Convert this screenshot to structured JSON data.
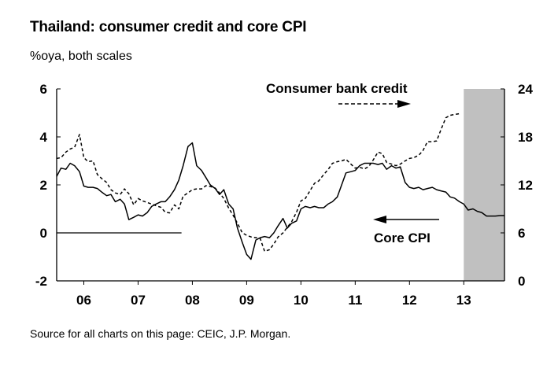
{
  "page": {
    "title": "Thailand: consumer credit and core CPI",
    "subtitle": "%oya, both scales",
    "source": "Source for all charts on this page: CEIC, J.P. Morgan."
  },
  "chart_data": {
    "type": "line",
    "title": "Thailand: consumer credit and core CPI",
    "subtitle": "%oya, both scales",
    "x_range": [
      2005.5,
      2013.75
    ],
    "x_tick_labels": [
      "06",
      "07",
      "08",
      "09",
      "10",
      "11",
      "12",
      "13"
    ],
    "y_left": {
      "range": [
        -2,
        6
      ],
      "ticks": [
        -2,
        0,
        2,
        4,
        6
      ]
    },
    "y_right": {
      "range": [
        0,
        24
      ],
      "ticks": [
        0,
        6,
        12,
        18,
        24
      ]
    },
    "shaded_region": {
      "x_start": 2013.0,
      "x_end": 2013.75,
      "color": "#c0c0c0"
    },
    "grid": false,
    "zero_line": {
      "y": 0,
      "x_start": 2005.5,
      "x_end": 2007.8
    },
    "annotations": {
      "credit_label": "Consumer bank credit",
      "cpi_label": "Core CPI",
      "credit_arrow": "right",
      "cpi_arrow": "left"
    },
    "series": [
      {
        "name": "Core CPI",
        "axis": "left",
        "style": "solid",
        "points": [
          [
            2005.5,
            2.35
          ],
          [
            2005.58,
            2.7
          ],
          [
            2005.67,
            2.65
          ],
          [
            2005.75,
            2.9
          ],
          [
            2005.83,
            2.8
          ],
          [
            2005.92,
            2.55
          ],
          [
            2006.0,
            1.95
          ],
          [
            2006.08,
            1.9
          ],
          [
            2006.17,
            1.9
          ],
          [
            2006.25,
            1.85
          ],
          [
            2006.33,
            1.7
          ],
          [
            2006.42,
            1.55
          ],
          [
            2006.5,
            1.6
          ],
          [
            2006.58,
            1.3
          ],
          [
            2006.67,
            1.4
          ],
          [
            2006.75,
            1.2
          ],
          [
            2006.83,
            0.55
          ],
          [
            2006.92,
            0.65
          ],
          [
            2007.0,
            0.75
          ],
          [
            2007.08,
            0.7
          ],
          [
            2007.17,
            0.85
          ],
          [
            2007.25,
            1.1
          ],
          [
            2007.33,
            1.2
          ],
          [
            2007.42,
            1.3
          ],
          [
            2007.5,
            1.3
          ],
          [
            2007.58,
            1.5
          ],
          [
            2007.67,
            1.8
          ],
          [
            2007.75,
            2.2
          ],
          [
            2007.83,
            2.8
          ],
          [
            2007.92,
            3.6
          ],
          [
            2008.0,
            3.75
          ],
          [
            2008.08,
            2.8
          ],
          [
            2008.17,
            2.6
          ],
          [
            2008.25,
            2.3
          ],
          [
            2008.33,
            2.0
          ],
          [
            2008.42,
            1.85
          ],
          [
            2008.5,
            1.6
          ],
          [
            2008.58,
            1.8
          ],
          [
            2008.67,
            1.2
          ],
          [
            2008.75,
            1.0
          ],
          [
            2008.83,
            0.2
          ],
          [
            2008.92,
            -0.4
          ],
          [
            2009.0,
            -0.9
          ],
          [
            2009.08,
            -1.1
          ],
          [
            2009.17,
            -0.3
          ],
          [
            2009.25,
            -0.2
          ],
          [
            2009.33,
            -0.15
          ],
          [
            2009.42,
            -0.2
          ],
          [
            2009.5,
            0.0
          ],
          [
            2009.58,
            0.3
          ],
          [
            2009.67,
            0.6
          ],
          [
            2009.75,
            0.2
          ],
          [
            2009.83,
            0.4
          ],
          [
            2009.92,
            0.5
          ],
          [
            2010.0,
            1.0
          ],
          [
            2010.08,
            1.1
          ],
          [
            2010.17,
            1.05
          ],
          [
            2010.25,
            1.1
          ],
          [
            2010.33,
            1.05
          ],
          [
            2010.42,
            1.05
          ],
          [
            2010.5,
            1.2
          ],
          [
            2010.58,
            1.3
          ],
          [
            2010.67,
            1.5
          ],
          [
            2010.75,
            2.0
          ],
          [
            2010.83,
            2.5
          ],
          [
            2010.92,
            2.55
          ],
          [
            2011.0,
            2.6
          ],
          [
            2011.08,
            2.8
          ],
          [
            2011.17,
            2.9
          ],
          [
            2011.25,
            2.9
          ],
          [
            2011.33,
            2.9
          ],
          [
            2011.42,
            2.85
          ],
          [
            2011.5,
            2.9
          ],
          [
            2011.58,
            2.65
          ],
          [
            2011.67,
            2.8
          ],
          [
            2011.75,
            2.7
          ],
          [
            2011.83,
            2.75
          ],
          [
            2011.92,
            2.1
          ],
          [
            2012.0,
            1.9
          ],
          [
            2012.08,
            1.85
          ],
          [
            2012.17,
            1.9
          ],
          [
            2012.25,
            1.8
          ],
          [
            2012.33,
            1.85
          ],
          [
            2012.42,
            1.9
          ],
          [
            2012.5,
            1.8
          ],
          [
            2012.58,
            1.75
          ],
          [
            2012.67,
            1.7
          ],
          [
            2012.75,
            1.5
          ],
          [
            2012.83,
            1.45
          ],
          [
            2012.92,
            1.3
          ],
          [
            2013.0,
            1.2
          ],
          [
            2013.08,
            0.95
          ],
          [
            2013.17,
            1.0
          ],
          [
            2013.25,
            0.9
          ],
          [
            2013.33,
            0.85
          ],
          [
            2013.42,
            0.7
          ],
          [
            2013.5,
            0.7
          ],
          [
            2013.58,
            0.7
          ],
          [
            2013.67,
            0.72
          ],
          [
            2013.75,
            0.72
          ]
        ]
      },
      {
        "name": "Consumer bank credit",
        "axis": "right",
        "style": "dashed",
        "points": [
          [
            2005.5,
            15.3
          ],
          [
            2005.58,
            15.4
          ],
          [
            2005.67,
            16.1
          ],
          [
            2005.75,
            16.5
          ],
          [
            2005.83,
            16.7
          ],
          [
            2005.92,
            18.3
          ],
          [
            2006.0,
            15.4
          ],
          [
            2006.08,
            14.9
          ],
          [
            2006.17,
            15.0
          ],
          [
            2006.25,
            13.3
          ],
          [
            2006.33,
            12.8
          ],
          [
            2006.42,
            12.3
          ],
          [
            2006.5,
            11.4
          ],
          [
            2006.58,
            11.0
          ],
          [
            2006.67,
            10.8
          ],
          [
            2006.75,
            11.5
          ],
          [
            2006.83,
            10.9
          ],
          [
            2006.92,
            9.5
          ],
          [
            2007.0,
            10.3
          ],
          [
            2007.08,
            10.0
          ],
          [
            2007.17,
            9.8
          ],
          [
            2007.25,
            9.6
          ],
          [
            2007.33,
            9.4
          ],
          [
            2007.42,
            9.2
          ],
          [
            2007.5,
            8.6
          ],
          [
            2007.58,
            8.5
          ],
          [
            2007.67,
            9.5
          ],
          [
            2007.75,
            9.0
          ],
          [
            2007.83,
            10.6
          ],
          [
            2007.92,
            11.0
          ],
          [
            2008.0,
            11.4
          ],
          [
            2008.08,
            11.5
          ],
          [
            2008.17,
            11.5
          ],
          [
            2008.25,
            11.9
          ],
          [
            2008.33,
            11.8
          ],
          [
            2008.42,
            11.6
          ],
          [
            2008.5,
            11.0
          ],
          [
            2008.58,
            10.3
          ],
          [
            2008.67,
            9.1
          ],
          [
            2008.75,
            8.2
          ],
          [
            2008.83,
            7.2
          ],
          [
            2008.92,
            6.0
          ],
          [
            2009.0,
            5.7
          ],
          [
            2009.08,
            5.5
          ],
          [
            2009.17,
            5.4
          ],
          [
            2009.25,
            5.3
          ],
          [
            2009.33,
            3.7
          ],
          [
            2009.42,
            3.9
          ],
          [
            2009.5,
            4.6
          ],
          [
            2009.58,
            5.5
          ],
          [
            2009.67,
            6.0
          ],
          [
            2009.75,
            6.7
          ],
          [
            2009.83,
            7.4
          ],
          [
            2009.92,
            8.6
          ],
          [
            2010.0,
            10.0
          ],
          [
            2010.08,
            10.3
          ],
          [
            2010.17,
            11.3
          ],
          [
            2010.25,
            12.2
          ],
          [
            2010.33,
            12.5
          ],
          [
            2010.42,
            13.3
          ],
          [
            2010.5,
            13.9
          ],
          [
            2010.58,
            14.7
          ],
          [
            2010.67,
            14.9
          ],
          [
            2010.75,
            15.0
          ],
          [
            2010.83,
            15.2
          ],
          [
            2010.92,
            14.6
          ],
          [
            2011.0,
            14.1
          ],
          [
            2011.08,
            14.2
          ],
          [
            2011.17,
            14.0
          ],
          [
            2011.25,
            14.3
          ],
          [
            2011.33,
            15.1
          ],
          [
            2011.42,
            16.1
          ],
          [
            2011.5,
            15.9
          ],
          [
            2011.58,
            14.8
          ],
          [
            2011.67,
            14.6
          ],
          [
            2011.75,
            14.4
          ],
          [
            2011.83,
            14.6
          ],
          [
            2011.92,
            15.0
          ],
          [
            2012.0,
            15.3
          ],
          [
            2012.08,
            15.4
          ],
          [
            2012.17,
            15.7
          ],
          [
            2012.25,
            16.3
          ],
          [
            2012.33,
            17.4
          ],
          [
            2012.42,
            17.4
          ],
          [
            2012.5,
            17.5
          ],
          [
            2012.58,
            18.9
          ],
          [
            2012.67,
            20.4
          ],
          [
            2012.75,
            20.7
          ],
          [
            2012.83,
            20.8
          ],
          [
            2012.92,
            20.9
          ]
        ]
      }
    ]
  }
}
